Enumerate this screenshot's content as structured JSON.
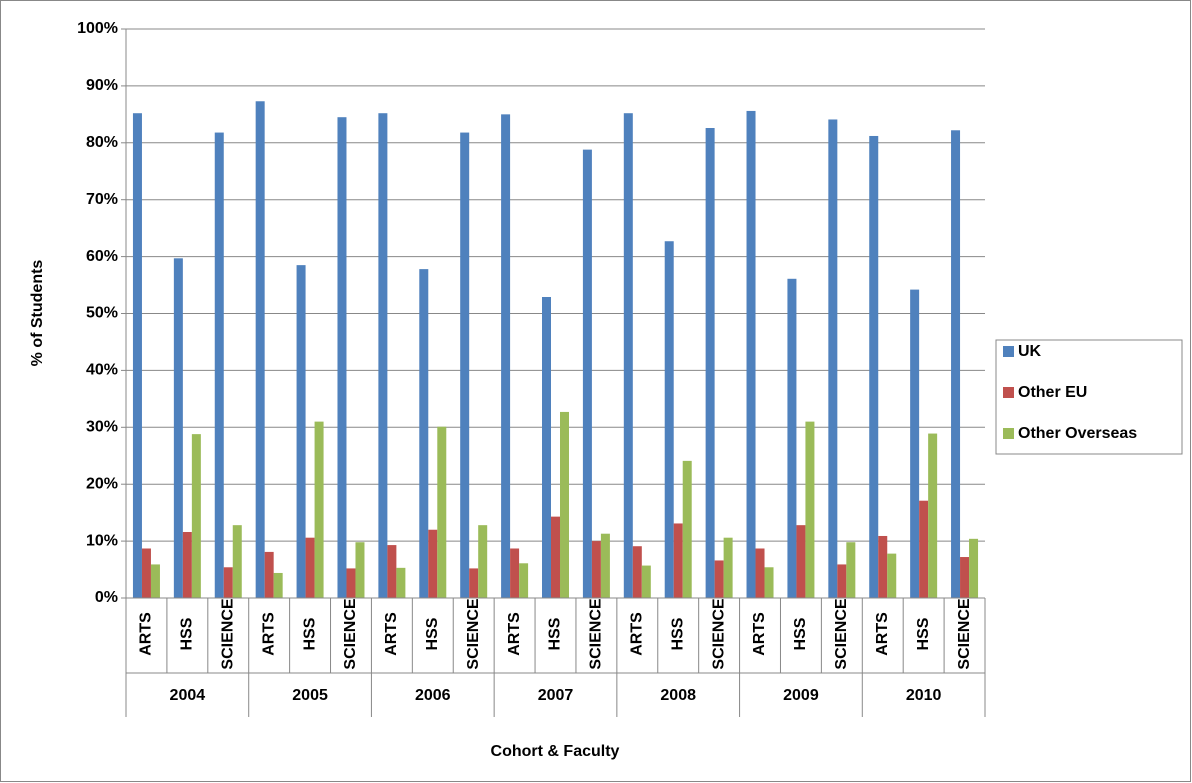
{
  "chart_data": {
    "type": "bar",
    "x_label": "Cohort & Faculty",
    "y_label": "% of Students",
    "categories": [
      "ARTS",
      "HSS",
      "SCIENCE",
      "ARTS",
      "HSS",
      "SCIENCE",
      "ARTS",
      "HSS",
      "SCIENCE",
      "ARTS",
      "HSS",
      "SCIENCE",
      "ARTS",
      "HSS",
      "SCIENCE",
      "ARTS",
      "HSS",
      "SCIENCE",
      "ARTS",
      "HSS",
      "SCIENCE"
    ],
    "category_groups": [
      "2004",
      "2005",
      "2006",
      "2007",
      "2008",
      "2009",
      "2010"
    ],
    "series": [
      {
        "name": "UK",
        "color": "#4f81bd",
        "values": [
          85.2,
          59.7,
          81.8,
          87.3,
          58.5,
          84.5,
          85.2,
          57.8,
          81.8,
          85.0,
          52.9,
          78.8,
          85.2,
          62.7,
          82.6,
          85.6,
          56.1,
          84.1,
          81.2,
          54.2,
          82.2
        ]
      },
      {
        "name": "Other EU",
        "color": "#c0504d",
        "values": [
          8.7,
          11.6,
          5.4,
          8.1,
          10.6,
          5.2,
          9.3,
          12.0,
          5.2,
          8.7,
          14.3,
          10.0,
          9.1,
          13.1,
          6.6,
          8.7,
          12.8,
          5.9,
          10.9,
          17.1,
          7.2
        ]
      },
      {
        "name": "Other Overseas",
        "color": "#9bbb59",
        "values": [
          5.9,
          28.8,
          12.8,
          4.4,
          31.0,
          9.8,
          5.3,
          30.1,
          12.8,
          6.1,
          32.7,
          11.3,
          5.7,
          24.1,
          10.6,
          5.4,
          31.0,
          9.8,
          7.8,
          28.9,
          10.4
        ]
      }
    ],
    "ylim": [
      0,
      100
    ],
    "yticks": [
      {
        "value": 0,
        "label": "0%"
      },
      {
        "value": 10,
        "label": "10%"
      },
      {
        "value": 20,
        "label": "20%"
      },
      {
        "value": 30,
        "label": "30%"
      },
      {
        "value": 40,
        "label": "40%"
      },
      {
        "value": 50,
        "label": "50%"
      },
      {
        "value": 60,
        "label": "60%"
      },
      {
        "value": 70,
        "label": "70%"
      },
      {
        "value": 80,
        "label": "80%"
      },
      {
        "value": 90,
        "label": "90%"
      },
      {
        "value": 100,
        "label": "100%"
      }
    ],
    "grid": true,
    "legend": "right"
  }
}
